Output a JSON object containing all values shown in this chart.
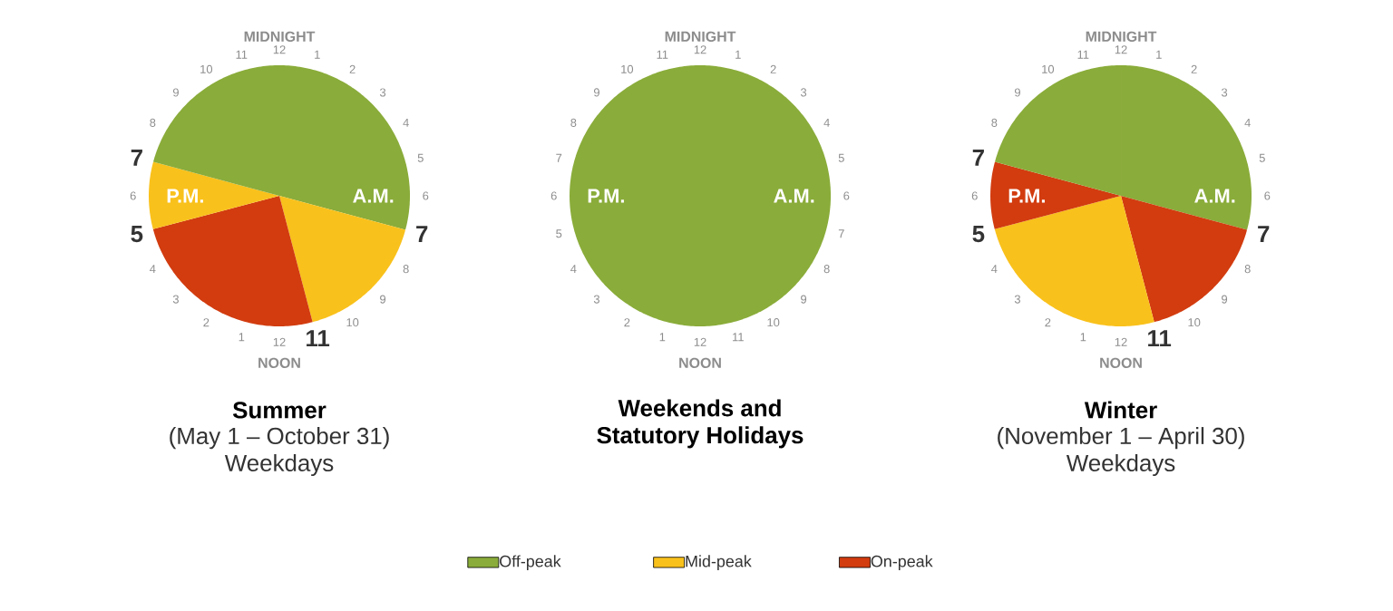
{
  "chart_data": [
    {
      "type": "pie",
      "title": "Summer",
      "subtitle": "(May 1 – October 31) Weekdays",
      "categories": [
        "Off-peak",
        "Mid-peak",
        "On-peak",
        null,
        null
      ],
      "values": [
        29.2,
        16.7,
        25,
        8.3,
        20.8
      ],
      "colors": [
        "#8aac3a",
        "#f9c11b",
        "#d23c0f",
        "#f9c11b",
        "#8aac3a"
      ],
      "annotations": [
        "MIDNIGHT",
        "12",
        "1",
        "2",
        "3",
        "4",
        "5",
        "6",
        "7",
        "8",
        "9",
        "10",
        "11",
        "12",
        "1",
        "2",
        "3",
        "4",
        "5",
        "6",
        "7",
        "8",
        "9",
        "10",
        "11",
        "NOON",
        "A.M.",
        "P.M."
      ],
      "legend": "bottom"
    },
    {
      "type": "pie",
      "title": "Weekends and Statutory Holidays",
      "categories": [
        null
      ],
      "values": [
        100
      ],
      "colors": [
        "#8aac3a"
      ],
      "annotations": [
        "MIDNIGHT",
        "12",
        "1",
        "2",
        "3",
        "4",
        "5",
        "6",
        "7",
        "8",
        "9",
        "10",
        "11",
        "12",
        "1",
        "2",
        "3",
        "4",
        "5",
        "6",
        "7",
        "8",
        "9",
        "10",
        "11",
        "NOON",
        "A.M.",
        "P.M."
      ]
    },
    {
      "type": "pie",
      "title": "Winter",
      "subtitle": "(November 1 – April 30) Weekdays",
      "categories": [
        null,
        null,
        null,
        null,
        null
      ],
      "values": [
        29.2,
        16.7,
        25,
        8.3,
        20.8
      ],
      "colors": [
        "#8aac3a",
        "#d23c0f",
        "#f9c11b",
        "#d23c0f",
        "#8aac3a"
      ],
      "annotations": [
        "MIDNIGHT",
        "12",
        "1",
        "2",
        "3",
        "4",
        "5",
        "6",
        "7",
        "8",
        "9",
        "10",
        "11",
        "12",
        "1",
        "2",
        "3",
        "4",
        "5",
        "6",
        "7",
        "8",
        "9",
        "10",
        "11",
        "NOON",
        "A.M.",
        "P.M."
      ]
    }
  ]
}
